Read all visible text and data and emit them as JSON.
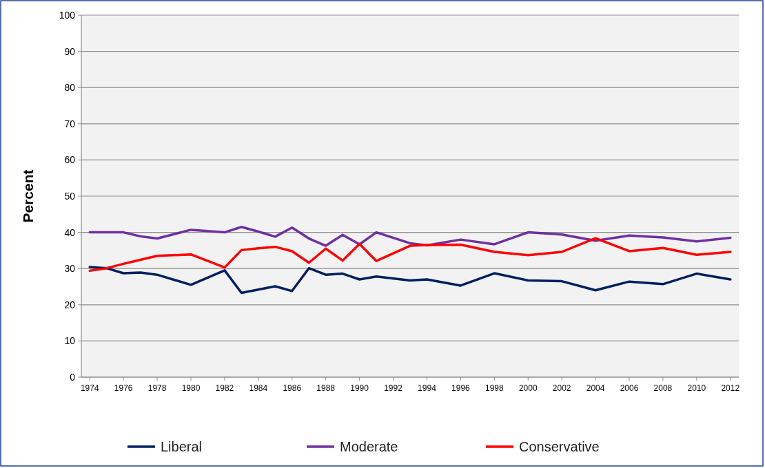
{
  "chart_data": {
    "type": "line",
    "ylabel": "Percent",
    "x": [
      1974,
      1975,
      1976,
      1977,
      1978,
      1980,
      1982,
      1983,
      1984,
      1985,
      1986,
      1987,
      1988,
      1989,
      1990,
      1991,
      1993,
      1994,
      1996,
      1998,
      2000,
      2002,
      2004,
      2006,
      2008,
      2010,
      2012
    ],
    "series": [
      {
        "name": "Liberal",
        "color": "#002060",
        "values": [
          30.4,
          30.1,
          28.7,
          28.9,
          28.3,
          25.5,
          29.5,
          23.3,
          24.2,
          25.1,
          23.8,
          30.1,
          28.3,
          28.6,
          27.0,
          27.8,
          26.7,
          27.0,
          25.3,
          28.7,
          26.7,
          26.5,
          24.0,
          26.4,
          25.7,
          28.6,
          27.0
        ]
      },
      {
        "name": "Moderate",
        "color": "#7030a0",
        "values": [
          40,
          40,
          40,
          38.9,
          38.3,
          40.7,
          40,
          41.5,
          40.2,
          38.8,
          41.3,
          38.3,
          36.3,
          39.3,
          36.7,
          40,
          37.0,
          36.4,
          38.0,
          36.7,
          40,
          39.4,
          37.7,
          39.1,
          38.6,
          37.5,
          38.5
        ]
      },
      {
        "name": "Conservative",
        "color": "#ff0000",
        "values": [
          29.4,
          30.1,
          31.3,
          32.4,
          33.5,
          33.9,
          30.3,
          35.1,
          35.6,
          36.0,
          34.8,
          31.6,
          35.5,
          32.2,
          36.8,
          32.1,
          36.3,
          36.5,
          36.6,
          34.6,
          33.7,
          34.6,
          38.4,
          34.8,
          35.7,
          33.8,
          34.6
        ]
      }
    ],
    "xlim": [
      1973.5,
      2012.5
    ],
    "xticks": [
      1974,
      1976,
      1978,
      1980,
      1982,
      1984,
      1986,
      1988,
      1990,
      1992,
      1994,
      1996,
      1998,
      2000,
      2002,
      2004,
      2006,
      2008,
      2010,
      2012
    ],
    "ylim": [
      0,
      100
    ],
    "yticks": [
      0,
      10,
      20,
      30,
      40,
      50,
      60,
      70,
      80,
      90,
      100
    ],
    "grid": "y",
    "legend": "bottom",
    "marker": "none",
    "line_style": "solid"
  }
}
